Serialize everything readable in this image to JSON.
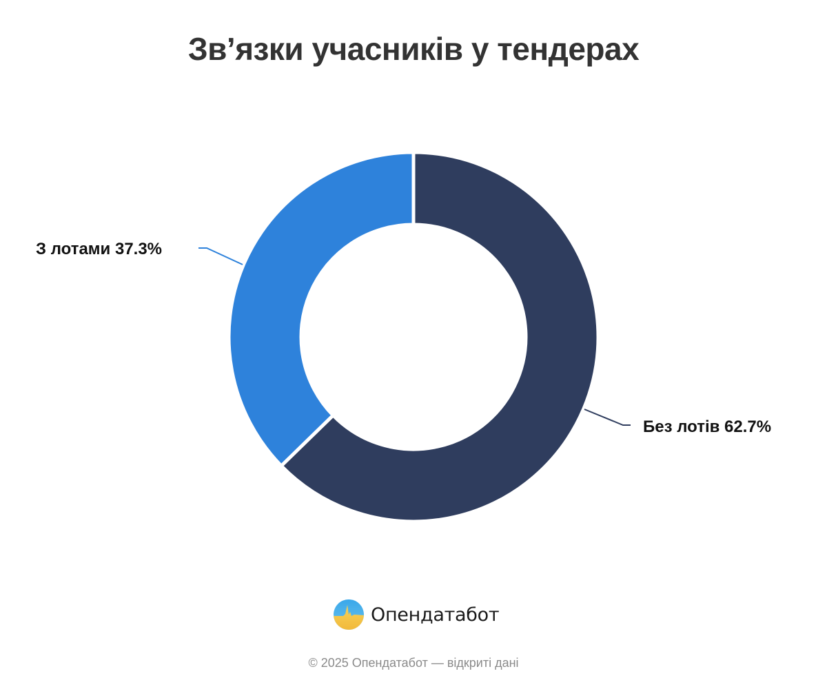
{
  "title": "Зв’язки учасників у тендерах",
  "colors": {
    "no_lots": "#2f3d5e",
    "with_lots": "#2e82db",
    "title": "#333333",
    "footer": "#8a8a8a"
  },
  "labels": {
    "with_lots": "З лотами 37.3%",
    "no_lots": "Без лотів 62.7%"
  },
  "brand": {
    "name": "Опендатабот",
    "logo_icon": "opendatabot-logo-icon"
  },
  "footer": {
    "text": "© 2025 Опендатабот — відкриті дані"
  },
  "chart_data": {
    "type": "pie",
    "variant": "donut",
    "title": "Зв’язки учасників у тендерах",
    "categories": [
      "Без лотів",
      "З лотами"
    ],
    "values": [
      62.7,
      37.3
    ],
    "unit": "%",
    "colors": [
      "#2f3d5e",
      "#2e82db"
    ],
    "start_angle": "12 o'clock, clockwise",
    "labels": [
      "Без лотів 62.7%",
      "З лотами 37.3%"
    ],
    "legend": "none (inline labels with leader lines)"
  }
}
